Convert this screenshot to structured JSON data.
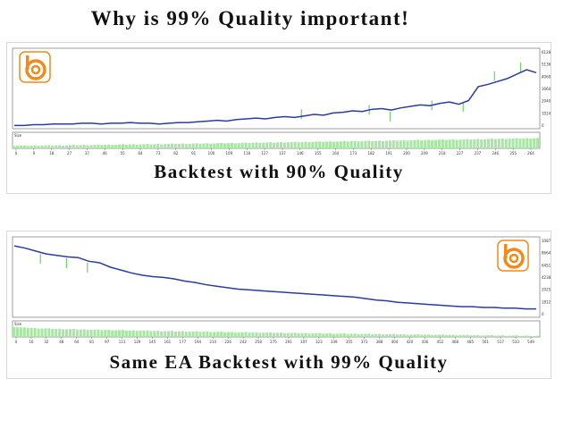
{
  "page": {
    "title": "Why is 99% Quality important!"
  },
  "charts": [
    {
      "caption": "Backtest with 90% Quality",
      "logo": "brand-logo",
      "volume_label": "Size",
      "y_ticks": [
        "6128004",
        "5136879",
        "4060328",
        "3064452",
        "2040388",
        "1024500",
        "0"
      ],
      "x_ticks": [
        "0",
        "9",
        "18",
        "27",
        "37",
        "46",
        "55",
        "64",
        "73",
        "82",
        "91",
        "100",
        "109",
        "118",
        "127",
        "137",
        "146",
        "155",
        "164",
        "173",
        "182",
        "191",
        "200",
        "209",
        "218",
        "227",
        "237",
        "246",
        "255",
        "264"
      ],
      "balance": [
        0.02,
        0.02,
        0.03,
        0.03,
        0.04,
        0.04,
        0.04,
        0.05,
        0.05,
        0.04,
        0.05,
        0.05,
        0.06,
        0.05,
        0.05,
        0.04,
        0.05,
        0.06,
        0.06,
        0.07,
        0.08,
        0.09,
        0.08,
        0.1,
        0.11,
        0.12,
        0.11,
        0.13,
        0.14,
        0.13,
        0.15,
        0.17,
        0.16,
        0.19,
        0.2,
        0.22,
        0.21,
        0.24,
        0.25,
        0.23,
        0.26,
        0.28,
        0.3,
        0.29,
        0.32,
        0.34,
        0.31,
        0.36,
        0.55,
        0.58,
        0.62,
        0.66,
        0.72,
        0.78,
        0.74
      ],
      "equity_spikes": [
        [
          0.55,
          0.18
        ],
        [
          0.68,
          0.24
        ],
        [
          0.72,
          0.15
        ],
        [
          0.8,
          0.3
        ],
        [
          0.86,
          0.28
        ],
        [
          0.92,
          0.7
        ],
        [
          0.97,
          0.82
        ]
      ],
      "volume_trend": "increasing",
      "colors": {
        "balance": "#2b3c9e",
        "equity": "#6fd16a",
        "volume": "#a8e6a3",
        "logo_orange": "#f08a1a"
      }
    },
    {
      "caption": "Same EA Backtest with 99% Quality",
      "logo": "brand-logo",
      "volume_label": "Size",
      "y_ticks": [
        "10877",
        "8664",
        "6451",
        "4238",
        "2025",
        "1812",
        "0"
      ],
      "x_ticks": [
        "0",
        "16",
        "32",
        "48",
        "64",
        "81",
        "97",
        "113",
        "129",
        "145",
        "161",
        "177",
        "194",
        "210",
        "226",
        "242",
        "258",
        "275",
        "291",
        "307",
        "323",
        "339",
        "355",
        "371",
        "388",
        "404",
        "420",
        "436",
        "452",
        "468",
        "485",
        "501",
        "517",
        "533",
        "549"
      ],
      "balance": [
        0.95,
        0.92,
        0.88,
        0.84,
        0.82,
        0.8,
        0.79,
        0.74,
        0.72,
        0.66,
        0.62,
        0.58,
        0.55,
        0.53,
        0.52,
        0.5,
        0.47,
        0.45,
        0.42,
        0.4,
        0.38,
        0.36,
        0.35,
        0.34,
        0.33,
        0.32,
        0.31,
        0.3,
        0.29,
        0.28,
        0.27,
        0.26,
        0.25,
        0.23,
        0.21,
        0.2,
        0.18,
        0.17,
        0.16,
        0.15,
        0.14,
        0.13,
        0.12,
        0.12,
        0.11,
        0.11,
        0.1,
        0.1,
        0.09,
        0.09
      ],
      "equity_spikes": [
        [
          0.05,
          0.78
        ],
        [
          0.1,
          0.72
        ],
        [
          0.14,
          0.66
        ]
      ],
      "volume_trend": "decreasing",
      "colors": {
        "balance": "#2b3c9e",
        "equity": "#6fd16a",
        "volume": "#a8e6a3",
        "logo_orange": "#f08a1a"
      }
    }
  ]
}
